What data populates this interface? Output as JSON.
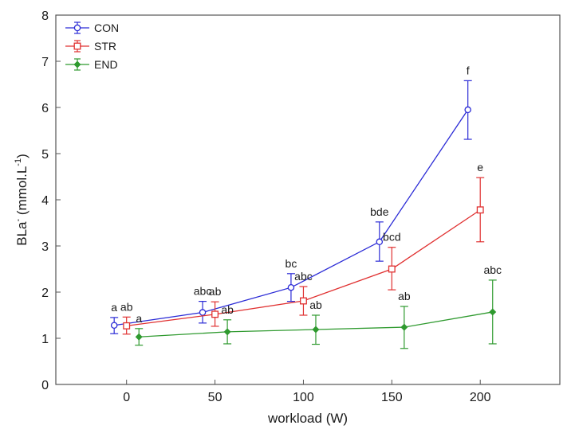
{
  "chart_data": {
    "type": "line",
    "title": "",
    "xlabel": "workload (W)",
    "ylabel": {
      "main": "BLa",
      "sup1": "-",
      "unit_open": " (mmol.L",
      "sup2": "-1",
      "unit_close": ")"
    },
    "xlim": [
      -40,
      245
    ],
    "ylim": [
      0,
      8
    ],
    "x_ticks": [
      0,
      50,
      100,
      150,
      200
    ],
    "y_ticks": [
      0,
      1,
      2,
      3,
      4,
      5,
      6,
      7,
      8
    ],
    "grid": false,
    "legend_position": "top-left",
    "series": [
      {
        "name": "CON",
        "color": "#2b2bd6",
        "marker": "circle",
        "x": [
          -7,
          43,
          93,
          143,
          193
        ],
        "y": [
          1.28,
          1.56,
          2.1,
          3.09,
          5.95
        ],
        "err_low": [
          1.1,
          1.33,
          1.8,
          2.67,
          5.31
        ],
        "err_high": [
          1.45,
          1.8,
          2.4,
          3.52,
          6.58
        ],
        "labels": [
          "a",
          "abc",
          "bc",
          "bde",
          "f"
        ]
      },
      {
        "name": "STR",
        "color": "#e03030",
        "marker": "square",
        "x": [
          0,
          50,
          100,
          150,
          200
        ],
        "y": [
          1.27,
          1.52,
          1.81,
          2.5,
          3.78
        ],
        "err_low": [
          1.09,
          1.26,
          1.5,
          2.05,
          3.09
        ],
        "err_high": [
          1.46,
          1.79,
          2.12,
          2.97,
          4.48
        ],
        "labels": [
          "ab",
          "ab",
          "abc",
          "bcd",
          "e"
        ]
      },
      {
        "name": "END",
        "color": "#2f9a2f",
        "marker": "diamond",
        "x": [
          7,
          57,
          107,
          157,
          207
        ],
        "y": [
          1.03,
          1.14,
          1.19,
          1.24,
          1.57
        ],
        "err_low": [
          0.85,
          0.88,
          0.87,
          0.78,
          0.88
        ],
        "err_high": [
          1.21,
          1.4,
          1.5,
          1.69,
          2.26
        ],
        "labels": [
          "a",
          "ab",
          "ab",
          "ab",
          "abc"
        ]
      }
    ]
  }
}
